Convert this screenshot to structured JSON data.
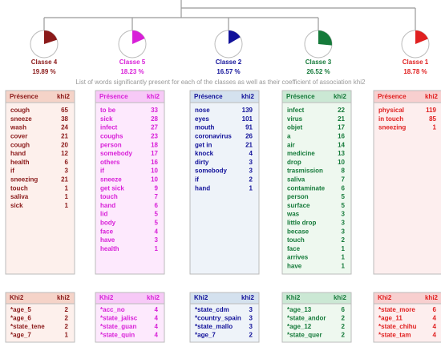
{
  "subtitle": "List of words significantly present for each of the classes as well as their coefficient of association khi2",
  "headers": {
    "presence": "Présence",
    "khi2": "khi2",
    "khi2_title": "Khi2"
  },
  "classes": [
    {
      "label": "Classe 4",
      "percent": 19.89,
      "percent_label": "19.89 %",
      "color": "#8b1a1a",
      "words": [
        [
          "cough",
          65
        ],
        [
          "sneeze",
          38
        ],
        [
          "wash",
          24
        ],
        [
          "cover",
          21
        ],
        [
          "cough",
          20
        ],
        [
          "hand",
          12
        ],
        [
          "health",
          6
        ],
        [
          "if",
          3
        ],
        [
          "sneezing",
          21
        ],
        [
          "touch",
          1
        ],
        [
          "saliva",
          1
        ],
        [
          "sick",
          1
        ]
      ],
      "variables": [
        [
          "*age_5",
          2
        ],
        [
          "*age_6",
          2
        ],
        [
          "*state_tene",
          2
        ],
        [
          "*age_7",
          1
        ]
      ]
    },
    {
      "label": "Classe 5",
      "percent": 18.23,
      "percent_label": "18.23 %",
      "color": "#d81fd8",
      "words": [
        [
          "to be",
          33
        ],
        [
          "sick",
          28
        ],
        [
          "infect",
          27
        ],
        [
          "coughs",
          23
        ],
        [
          "person",
          18
        ],
        [
          "somebody",
          17
        ],
        [
          "others",
          16
        ],
        [
          "if",
          10
        ],
        [
          "sneeze",
          10
        ],
        [
          "get sick",
          9
        ],
        [
          "touch",
          7
        ],
        [
          "hand",
          6
        ],
        [
          "lid",
          5
        ],
        [
          "body",
          5
        ],
        [
          "face",
          4
        ],
        [
          "have",
          3
        ],
        [
          "health",
          1
        ]
      ],
      "variables": [
        [
          "*acc_no",
          4
        ],
        [
          "*state_jalisc",
          4
        ],
        [
          "*state_guan",
          4
        ],
        [
          "*state_quin",
          4
        ]
      ]
    },
    {
      "label": "Classe 2",
      "percent": 16.57,
      "percent_label": "16.57 %",
      "color": "#12129a",
      "words": [
        [
          "nose",
          139
        ],
        [
          "eyes",
          101
        ],
        [
          "mouth",
          91
        ],
        [
          "coronavirus",
          26
        ],
        [
          "get in",
          21
        ],
        [
          "knock",
          4
        ],
        [
          "dirty",
          3
        ],
        [
          "somebody",
          3
        ],
        [
          "if",
          2
        ],
        [
          "hand",
          1
        ]
      ],
      "variables": [
        [
          "*state_cdm",
          3
        ],
        [
          "*country_spain",
          3
        ],
        [
          "*state_mallo",
          3
        ],
        [
          "*age_7",
          2
        ]
      ]
    },
    {
      "label": "Classe 3",
      "percent": 26.52,
      "percent_label": "26.52 %",
      "color": "#157a3a",
      "words": [
        [
          "infect",
          22
        ],
        [
          "virus",
          21
        ],
        [
          "objet",
          17
        ],
        [
          "a",
          16
        ],
        [
          "air",
          14
        ],
        [
          "medicine",
          13
        ],
        [
          "drop",
          10
        ],
        [
          "trasmission",
          8
        ],
        [
          "saliva",
          7
        ],
        [
          "contaminate",
          6
        ],
        [
          "person",
          5
        ],
        [
          "surface",
          5
        ],
        [
          "was",
          3
        ],
        [
          "little drop",
          3
        ],
        [
          "becase",
          3
        ],
        [
          "touch",
          2
        ],
        [
          "face",
          1
        ],
        [
          "arrives",
          1
        ],
        [
          "have",
          1
        ]
      ],
      "variables": [
        [
          "*age_13",
          6
        ],
        [
          "*state_andor",
          2
        ],
        [
          "*age_12",
          2
        ],
        [
          "*state_quer",
          2
        ]
      ]
    },
    {
      "label": "Classe 1",
      "percent": 18.78,
      "percent_label": "18.78 %",
      "color": "#e02020",
      "words": [
        [
          "physical",
          119
        ],
        [
          "in touch",
          85
        ],
        [
          "sneezing",
          1
        ]
      ],
      "variables": [
        [
          "*state_more",
          6
        ],
        [
          "*age_11",
          4
        ],
        [
          "*state_chihu",
          4
        ],
        [
          "*state_tam",
          4
        ]
      ]
    }
  ]
}
